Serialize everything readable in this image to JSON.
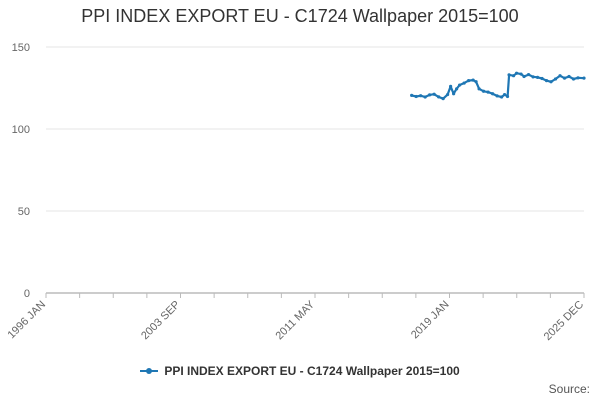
{
  "chart_data": {
    "type": "line",
    "title": "PPI INDEX EXPORT EU - C1724 Wallpaper 2015=100",
    "xlabel": "",
    "ylabel": "",
    "ylim": [
      0,
      150
    ],
    "yticks": [
      "0",
      "50",
      "100",
      "150"
    ],
    "xticks": [
      "1996 JAN",
      "2003 SEP",
      "2011 MAY",
      "2019 JAN",
      "2025 DEC"
    ],
    "xlim": [
      "1996-01",
      "2025-12"
    ],
    "grid": true,
    "legend_position": "bottom",
    "series": [
      {
        "name": "PPI INDEX EXPORT EU - C1724 Wallpaper 2015=100",
        "color": "#1f77b4",
        "points": [
          [
            "2016-05",
            120.5
          ],
          [
            "2016-08",
            119.8
          ],
          [
            "2016-11",
            120.3
          ],
          [
            "2017-02",
            119.5
          ],
          [
            "2017-05",
            120.8
          ],
          [
            "2017-08",
            121.2
          ],
          [
            "2017-11",
            119.6
          ],
          [
            "2018-02",
            118.5
          ],
          [
            "2018-05",
            121.0
          ],
          [
            "2018-07",
            126.0
          ],
          [
            "2018-09",
            121.5
          ],
          [
            "2018-11",
            124.5
          ],
          [
            "2019-01",
            126.8
          ],
          [
            "2019-04",
            128.0
          ],
          [
            "2019-07",
            129.5
          ],
          [
            "2019-10",
            129.8
          ],
          [
            "2019-12",
            128.8
          ],
          [
            "2020-02",
            124.5
          ],
          [
            "2020-05",
            123.0
          ],
          [
            "2020-08",
            122.5
          ],
          [
            "2020-11",
            121.5
          ],
          [
            "2021-02",
            120.2
          ],
          [
            "2021-05",
            119.5
          ],
          [
            "2021-07",
            121.0
          ],
          [
            "2021-09",
            119.8
          ],
          [
            "2021-10",
            133.0
          ],
          [
            "2022-01",
            132.5
          ],
          [
            "2022-03",
            134.0
          ],
          [
            "2022-06",
            133.5
          ],
          [
            "2022-08",
            132.0
          ],
          [
            "2022-11",
            133.2
          ],
          [
            "2023-02",
            131.8
          ],
          [
            "2023-05",
            131.5
          ],
          [
            "2023-08",
            130.8
          ],
          [
            "2023-11",
            129.5
          ],
          [
            "2024-02",
            128.8
          ],
          [
            "2024-05",
            130.5
          ],
          [
            "2024-08",
            132.5
          ],
          [
            "2024-11",
            131.0
          ],
          [
            "2025-02",
            132.0
          ],
          [
            "2025-05",
            130.5
          ],
          [
            "2025-08",
            131.2
          ],
          [
            "2025-12",
            131.0
          ]
        ]
      }
    ]
  },
  "footer": {
    "source": "Source:"
  }
}
